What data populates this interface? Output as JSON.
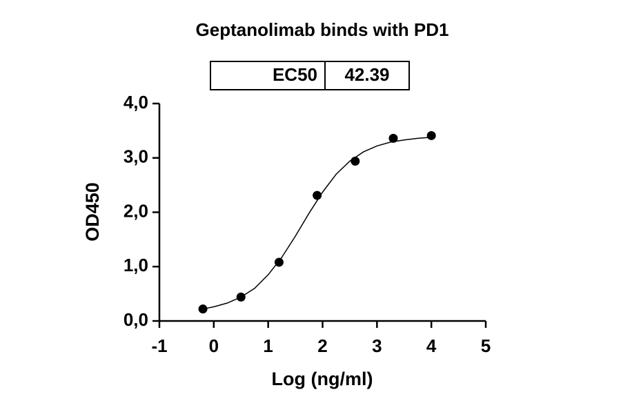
{
  "chart_data": {
    "type": "scatter",
    "title": "Geptanolimab binds with PD1",
    "ec50": {
      "label": "EC50",
      "value": 42.39
    },
    "x_label": "Log (ng/ml)",
    "y_label": "OD450",
    "x": [
      -0.2,
      0.5,
      1.2,
      1.9,
      2.6,
      3.3,
      4.0
    ],
    "values": [
      0.22,
      0.44,
      1.08,
      2.31,
      2.94,
      3.36,
      3.41
    ],
    "color": "#000000",
    "fit": {
      "x": [
        -0.2,
        0,
        0.25,
        0.5,
        0.75,
        1,
        1.25,
        1.5,
        1.75,
        2,
        2.25,
        2.5,
        2.75,
        3,
        3.25,
        3.5,
        3.75,
        4
      ],
      "values": [
        0.22,
        0.26,
        0.33,
        0.44,
        0.6,
        0.85,
        1.17,
        1.56,
        1.98,
        2.37,
        2.7,
        2.94,
        3.11,
        3.22,
        3.29,
        3.33,
        3.36,
        3.38
      ]
    },
    "xlim": [
      -1,
      5
    ],
    "ylim": [
      0,
      4
    ],
    "xticks": [
      -1,
      0,
      1,
      2,
      3,
      4,
      5
    ],
    "yticks": [
      {
        "value": 0,
        "label": "0,0"
      },
      {
        "value": 1,
        "label": "1,0"
      },
      {
        "value": 2,
        "label": "2,0"
      },
      {
        "value": 3,
        "label": "3,0"
      },
      {
        "value": 4,
        "label": "4,0"
      }
    ],
    "grid": false
  }
}
